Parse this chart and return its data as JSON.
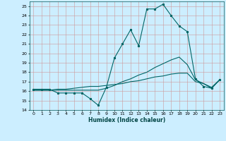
{
  "title": "",
  "xlabel": "Humidex (Indice chaleur)",
  "bg_color": "#cceeff",
  "grid_color": "#cc9999",
  "line_color": "#006666",
  "xlim": [
    -0.5,
    23.5
  ],
  "ylim": [
    14,
    25.5
  ],
  "xticks": [
    0,
    1,
    2,
    3,
    4,
    5,
    6,
    7,
    8,
    9,
    10,
    11,
    12,
    13,
    14,
    15,
    16,
    17,
    18,
    19,
    20,
    21,
    22,
    23
  ],
  "yticks": [
    14,
    15,
    16,
    17,
    18,
    19,
    20,
    21,
    22,
    23,
    24,
    25
  ],
  "line1_x": [
    0,
    1,
    2,
    3,
    4,
    5,
    6,
    7,
    8,
    9,
    10,
    11,
    12,
    13,
    14,
    15,
    16,
    17,
    18,
    19,
    20,
    21,
    22,
    23
  ],
  "line1_y": [
    16.2,
    16.2,
    16.2,
    15.8,
    15.8,
    15.8,
    15.8,
    15.2,
    14.5,
    16.4,
    19.5,
    21.0,
    22.5,
    20.8,
    24.7,
    24.7,
    25.2,
    24.0,
    22.9,
    22.3,
    17.3,
    16.5,
    16.3,
    17.2
  ],
  "line2_x": [
    0,
    1,
    2,
    3,
    4,
    5,
    6,
    7,
    8,
    9,
    10,
    11,
    12,
    13,
    14,
    15,
    16,
    17,
    18,
    19,
    20,
    21,
    22,
    23
  ],
  "line2_y": [
    16.1,
    16.1,
    16.1,
    16.1,
    16.1,
    16.1,
    16.1,
    16.1,
    16.1,
    16.3,
    16.6,
    17.0,
    17.3,
    17.7,
    18.0,
    18.5,
    18.9,
    19.3,
    19.6,
    18.8,
    17.2,
    16.8,
    16.3,
    17.2
  ],
  "line3_x": [
    0,
    1,
    2,
    3,
    4,
    5,
    6,
    7,
    8,
    9,
    10,
    11,
    12,
    13,
    14,
    15,
    16,
    17,
    18,
    19,
    20,
    21,
    22,
    23
  ],
  "line3_y": [
    16.1,
    16.1,
    16.1,
    16.2,
    16.2,
    16.3,
    16.4,
    16.5,
    16.5,
    16.6,
    16.7,
    16.8,
    17.0,
    17.1,
    17.3,
    17.5,
    17.6,
    17.8,
    17.9,
    17.9,
    17.0,
    16.8,
    16.4,
    17.2
  ]
}
